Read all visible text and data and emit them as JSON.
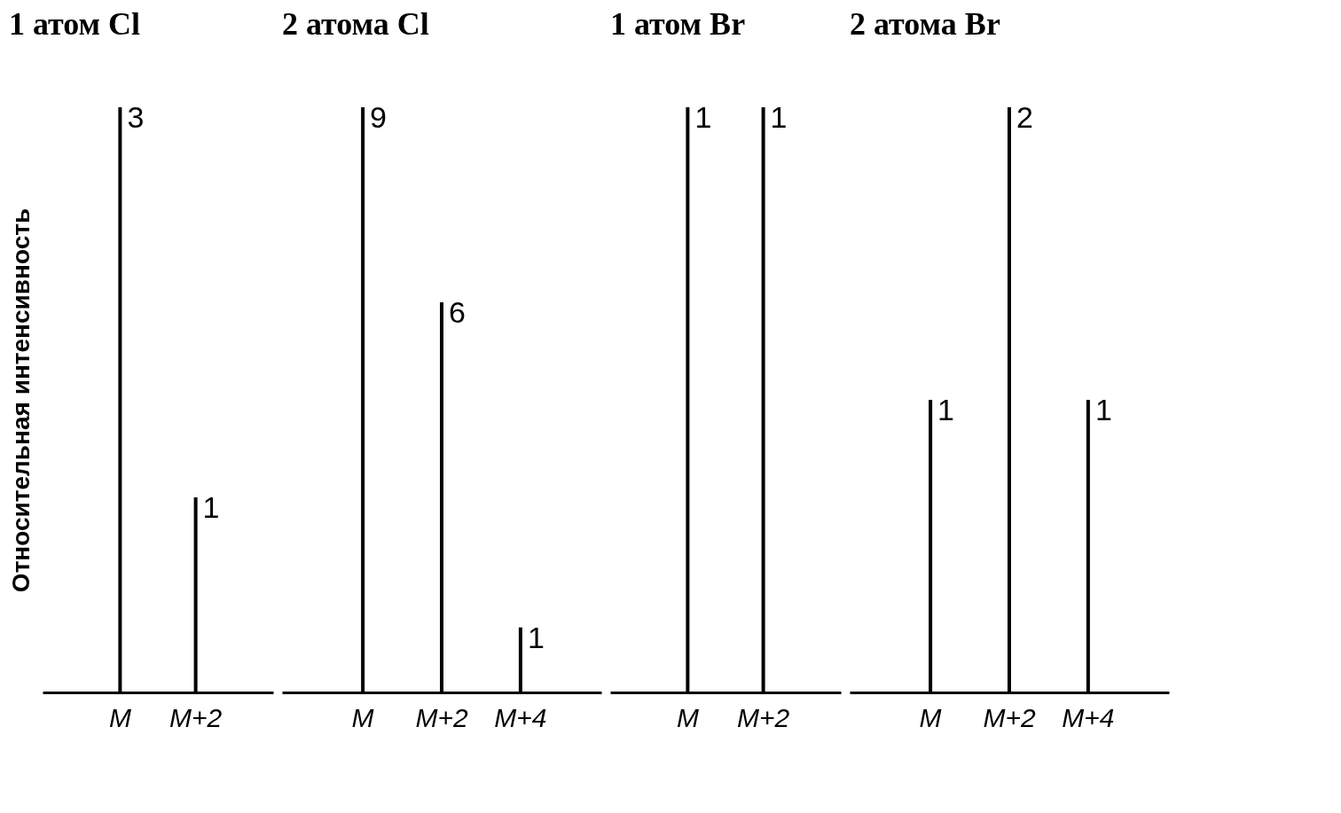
{
  "chart_data": [
    {
      "type": "bar",
      "title": "1 атом Cl",
      "ylabel": "Относительная интенсивность",
      "categories": [
        "M",
        "M+2"
      ],
      "values": [
        3,
        1
      ],
      "color": "#000000",
      "data_labels": true,
      "tick_labels": "x"
    },
    {
      "type": "bar",
      "title": "2 атома Cl",
      "categories": [
        "M",
        "M+2",
        "M+4"
      ],
      "values": [
        9,
        6,
        1
      ],
      "color": "#000000",
      "data_labels": true,
      "tick_labels": "x"
    },
    {
      "type": "bar",
      "title": "1 атом Br",
      "categories": [
        "M",
        "M+2"
      ],
      "values": [
        1,
        1
      ],
      "color": "#000000",
      "data_labels": true,
      "tick_labels": "x"
    },
    {
      "type": "bar",
      "title": "2 атома Br",
      "categories": [
        "M",
        "M+2",
        "M+4"
      ],
      "values": [
        1,
        2,
        1
      ],
      "color": "#000000",
      "data_labels": true,
      "tick_labels": "x"
    }
  ]
}
